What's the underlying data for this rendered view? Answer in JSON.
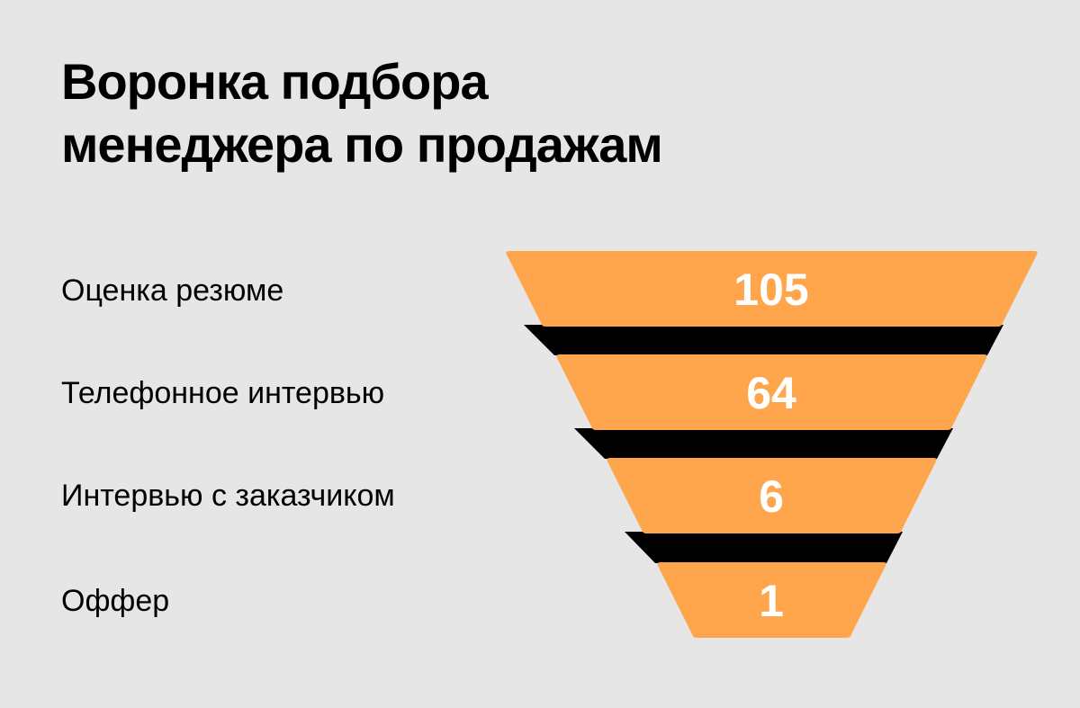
{
  "title": {
    "line1": "Воронка подбора",
    "line2": "менеджера по продажам"
  },
  "colors": {
    "background": "#e6e6e6",
    "segment": "#ffa64d",
    "connector": "#000000",
    "value_text": "#ffffff",
    "text": "#000000"
  },
  "chart_data": {
    "type": "funnel",
    "title": "Воронка подбора менеджера по продажам",
    "categories": [
      "Оценка резюме",
      "Телефонное интервью",
      "Интервью с заказчиком",
      "Оффер"
    ],
    "values": [
      105,
      64,
      6,
      1
    ],
    "value_labels": [
      "105",
      "64",
      "6",
      "1"
    ]
  }
}
